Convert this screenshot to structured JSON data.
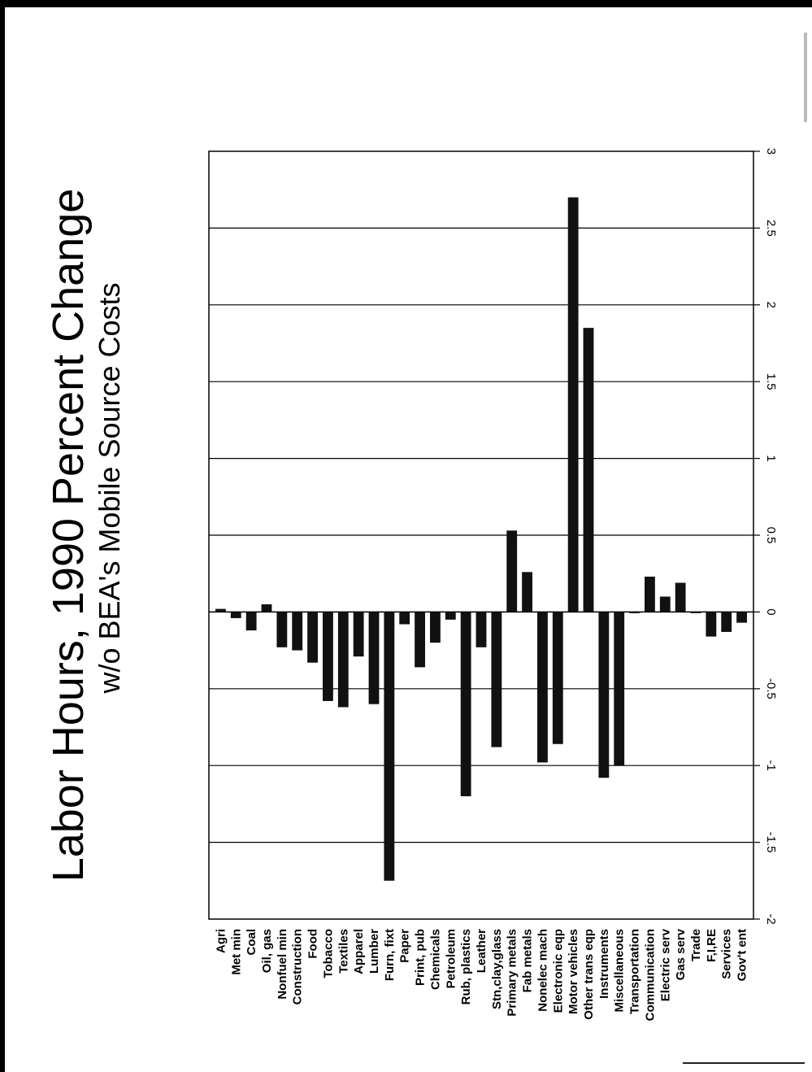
{
  "chart_data": {
    "type": "bar",
    "title": "Labor Hours,  1990 Percent Change",
    "subtitle": "w/o BEA's Mobile Source Costs",
    "xlabel": "",
    "ylabel": "",
    "ylim": [
      -2,
      3
    ],
    "yticks": [
      3,
      2.5,
      2,
      1.5,
      1,
      0.5,
      0,
      -0.5,
      -1,
      -1.5,
      -2
    ],
    "ytick_labels": [
      "3",
      "2.5",
      "2",
      "1.5",
      "1",
      "0.5",
      "0",
      "-0.5",
      "-1",
      "-1.5",
      "-2"
    ],
    "grid": true,
    "orientation": "rotated 90 degrees clockwise",
    "categories": [
      "Agri",
      "Met min",
      "Coal",
      "Oil, gas",
      "Nonfuel min",
      "Construction",
      "Food",
      "Tobacco",
      "Textiles",
      "Apparel",
      "Lumber",
      "Furn, fixt",
      "Paper",
      "Print, pub",
      "Chemicals",
      "Petroleum",
      "Rub, plastics",
      "Leather",
      "Stn,clay,glass",
      "Primary metals",
      "Fab metals",
      "Nonelec mach",
      "Electronic eqp",
      "Motor vehicles",
      "Other trans eqp",
      "Instruments",
      "Miscellaneous",
      "Transportation",
      "Communication",
      "Electric serv",
      "Gas serv",
      "Trade",
      "F,I,RE",
      "Services",
      "Gov't ent"
    ],
    "values": [
      0.02,
      -0.04,
      -0.12,
      0.05,
      -0.23,
      -0.25,
      -0.33,
      -0.58,
      -0.62,
      -0.29,
      -0.6,
      -1.75,
      -0.08,
      -0.36,
      -0.2,
      -0.05,
      -1.2,
      -0.23,
      -0.88,
      0.53,
      0.26,
      -0.98,
      -0.86,
      2.7,
      1.85,
      -1.08,
      -1.0,
      0.0,
      0.23,
      0.1,
      0.19,
      0.0,
      -0.16,
      -0.13,
      -0.07
    ],
    "bar_color": "#111111"
  }
}
